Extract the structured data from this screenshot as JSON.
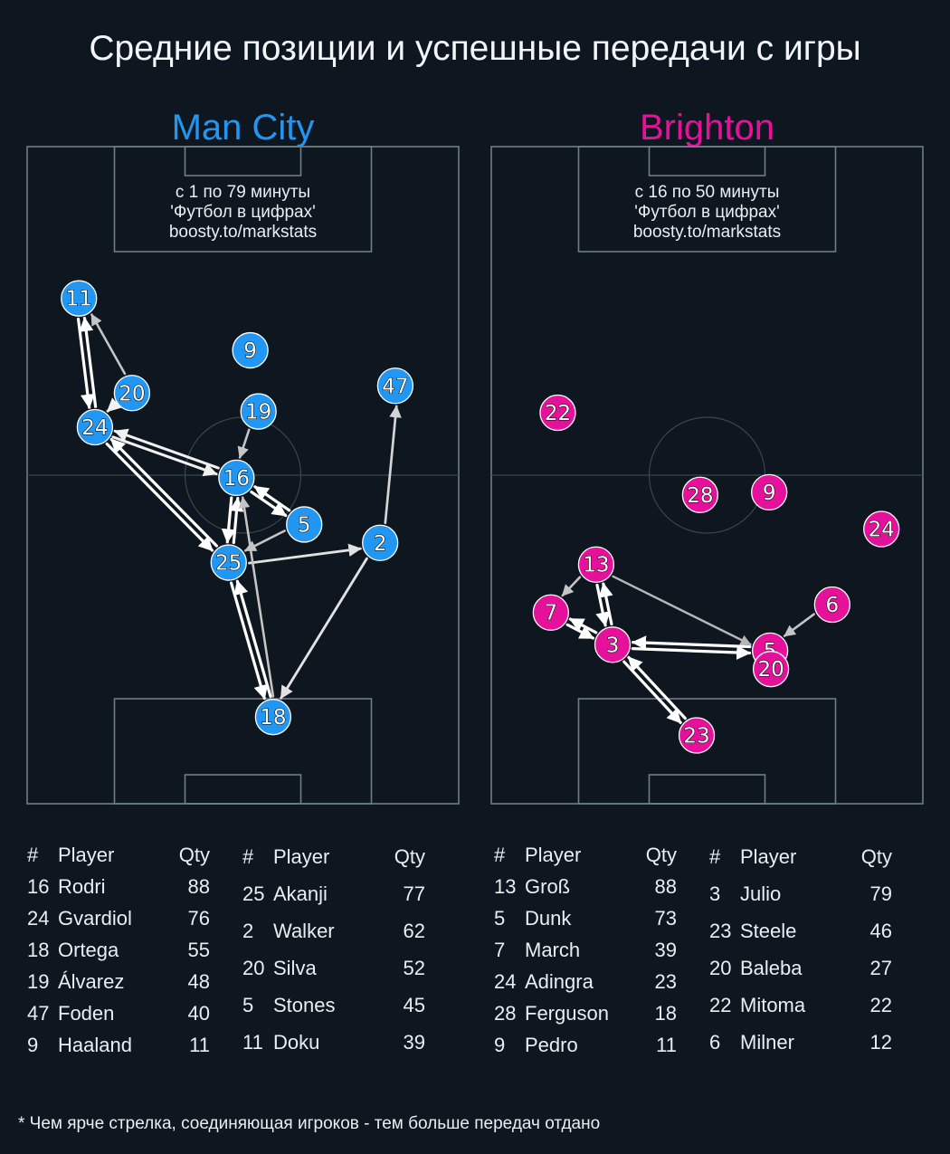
{
  "title": "Средние позиции и успешные передачи с игры",
  "footnote": "* Чем ярче стрелка, соединяющая игроков - тем больше передач отдано",
  "roster_headers": {
    "num": "#",
    "player": "Player",
    "qty": "Qty"
  },
  "chart_data": [
    {
      "type": "scatter",
      "team": "Man City",
      "color": "#2196f3",
      "interval": "с 1 по 79 минуты",
      "credit": "'Футбол в цифрах'",
      "site": "boosty.to/markstats",
      "players": [
        {
          "num": "16",
          "name": "Rodri",
          "qty": 88,
          "x": 48.5,
          "y": 50.4
        },
        {
          "num": "24",
          "name": "Gvardiol",
          "qty": 76,
          "x": 15.7,
          "y": 42.7
        },
        {
          "num": "18",
          "name": "Ortega",
          "qty": 55,
          "x": 57.0,
          "y": 86.8
        },
        {
          "num": "19",
          "name": "Álvarez",
          "qty": 48,
          "x": 53.6,
          "y": 40.3
        },
        {
          "num": "47",
          "name": "Foden",
          "qty": 40,
          "x": 85.3,
          "y": 36.4
        },
        {
          "num": "9",
          "name": "Haaland",
          "qty": 11,
          "x": 51.7,
          "y": 31.0
        },
        {
          "num": "25",
          "name": "Akanji",
          "qty": 77,
          "x": 46.7,
          "y": 63.3
        },
        {
          "num": "2",
          "name": "Walker",
          "qty": 62,
          "x": 81.8,
          "y": 60.3
        },
        {
          "num": "20",
          "name": "Silva",
          "qty": 52,
          "x": 24.3,
          "y": 37.5
        },
        {
          "num": "5",
          "name": "Stones",
          "qty": 45,
          "x": 64.2,
          "y": 57.5
        },
        {
          "num": "11",
          "name": "Doku",
          "qty": 39,
          "x": 12.0,
          "y": 23.1
        }
      ],
      "passes": [
        {
          "from": "24",
          "to": "11",
          "level": 1.0
        },
        {
          "from": "11",
          "to": "24",
          "level": 1.0
        },
        {
          "from": "20",
          "to": "11",
          "level": 0.6
        },
        {
          "from": "20",
          "to": "24",
          "level": 0.9
        },
        {
          "from": "24",
          "to": "16",
          "level": 0.9
        },
        {
          "from": "16",
          "to": "24",
          "level": 0.9
        },
        {
          "from": "24",
          "to": "25",
          "level": 1.0
        },
        {
          "from": "25",
          "to": "24",
          "level": 1.0
        },
        {
          "from": "19",
          "to": "16",
          "level": 0.6
        },
        {
          "from": "16",
          "to": "5",
          "level": 1.0
        },
        {
          "from": "5",
          "to": "16",
          "level": 1.0
        },
        {
          "from": "5",
          "to": "25",
          "level": 0.6
        },
        {
          "from": "16",
          "to": "25",
          "level": 1.0
        },
        {
          "from": "25",
          "to": "16",
          "level": 1.0
        },
        {
          "from": "25",
          "to": "2",
          "level": 0.8
        },
        {
          "from": "2",
          "to": "47",
          "level": 0.7
        },
        {
          "from": "2",
          "to": "18",
          "level": 0.8
        },
        {
          "from": "25",
          "to": "18",
          "level": 1.0
        },
        {
          "from": "18",
          "to": "25",
          "level": 1.0
        },
        {
          "from": "18",
          "to": "16",
          "level": 0.6
        }
      ]
    },
    {
      "type": "scatter",
      "team": "Brighton",
      "color": "#e6119b",
      "interval": "с 16 по 50 минуты",
      "credit": "'Футбол в цифрах'",
      "site": "boosty.to/markstats",
      "players": [
        {
          "num": "13",
          "name": "Groß",
          "qty": 88,
          "x": 24.3,
          "y": 63.6
        },
        {
          "num": "5",
          "name": "Dunk",
          "qty": 73,
          "x": 64.6,
          "y": 76.7
        },
        {
          "num": "7",
          "name": "March",
          "qty": 39,
          "x": 13.8,
          "y": 70.9
        },
        {
          "num": "24",
          "name": "Adingra",
          "qty": 23,
          "x": 90.4,
          "y": 58.2
        },
        {
          "num": "28",
          "name": "Ferguson",
          "qty": 18,
          "x": 48.4,
          "y": 53.0
        },
        {
          "num": "9",
          "name": "Pedro",
          "qty": 11,
          "x": 64.4,
          "y": 52.6
        },
        {
          "num": "3",
          "name": "Julio",
          "qty": 79,
          "x": 28.1,
          "y": 75.8
        },
        {
          "num": "23",
          "name": "Steele",
          "qty": 46,
          "x": 47.6,
          "y": 89.6
        },
        {
          "num": "20",
          "name": "Baleba",
          "qty": 27,
          "x": 64.8,
          "y": 79.5
        },
        {
          "num": "22",
          "name": "Mitoma",
          "qty": 22,
          "x": 15.4,
          "y": 40.5
        },
        {
          "num": "6",
          "name": "Milner",
          "qty": 12,
          "x": 79.0,
          "y": 69.7
        }
      ],
      "passes": [
        {
          "from": "13",
          "to": "7",
          "level": 0.6
        },
        {
          "from": "13",
          "to": "3",
          "level": 1.0
        },
        {
          "from": "3",
          "to": "13",
          "level": 1.0
        },
        {
          "from": "7",
          "to": "3",
          "level": 1.0
        },
        {
          "from": "3",
          "to": "7",
          "level": 1.0
        },
        {
          "from": "3",
          "to": "5",
          "level": 1.0
        },
        {
          "from": "5",
          "to": "3",
          "level": 1.0
        },
        {
          "from": "13",
          "to": "5",
          "level": 0.5
        },
        {
          "from": "6",
          "to": "5",
          "level": 0.6
        },
        {
          "from": "3",
          "to": "23",
          "level": 1.0
        },
        {
          "from": "23",
          "to": "3",
          "level": 1.0
        }
      ]
    }
  ]
}
